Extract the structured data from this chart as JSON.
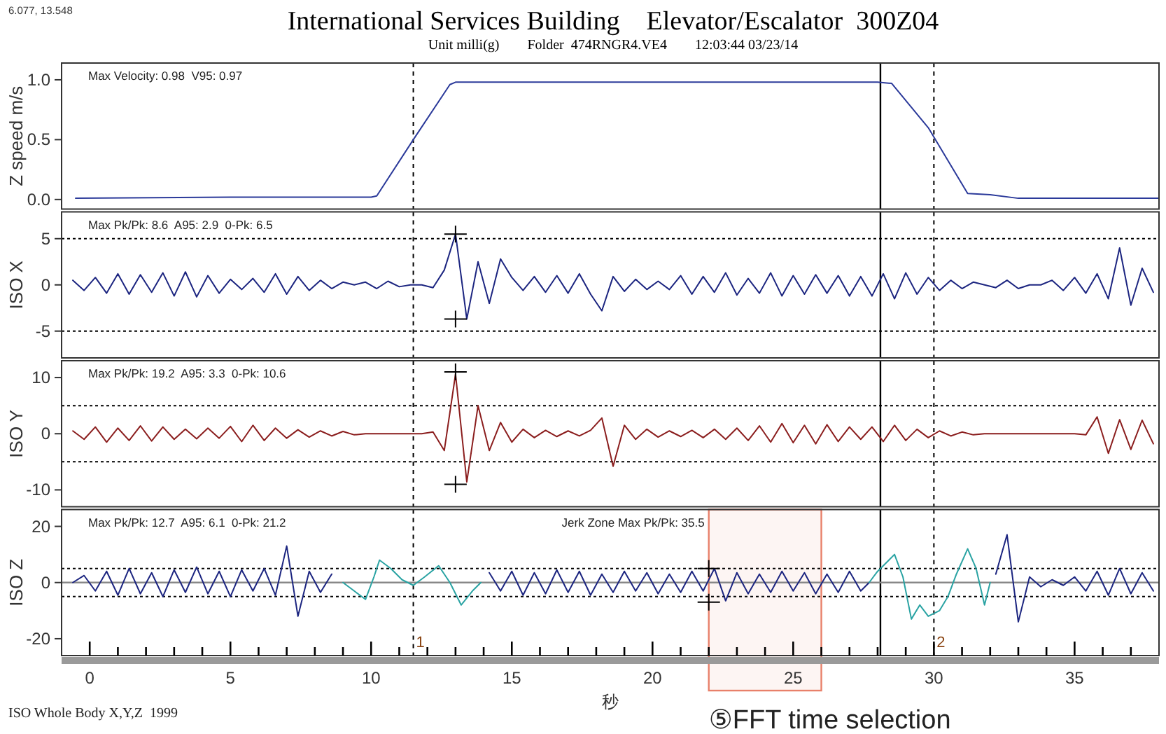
{
  "chart_data": [
    {
      "type": "line",
      "title": "International Services Building    Elevator/Escalator  300Z04",
      "subtitle": "Unit milli(g)        Folder  474RNGR4.VE4        12:03:44 03/23/14",
      "ylabel": "Z speed m/s",
      "xlim": [
        -1,
        38
      ],
      "ylim": [
        -0.08,
        1.14
      ],
      "yticks": [
        {
          "value": 0,
          "label": "0.0"
        },
        {
          "value": 0.5,
          "label": "0.5"
        },
        {
          "value": 1,
          "label": "1.0"
        }
      ],
      "tick_labels": "y",
      "annotations": [
        "6.077, 13.548",
        "Max Velocity: 0.98  V95: 0.97"
      ],
      "ref_lines": [
        {
          "axis": "x",
          "value": 11.5,
          "line_style": "dashed",
          "color": "#000000"
        },
        {
          "axis": "x",
          "value": 28.1,
          "line_style": "solid",
          "color": "#000000"
        },
        {
          "axis": "x",
          "value": 30,
          "line_style": "dashed",
          "color": "#000000"
        }
      ],
      "series": [
        {
          "color": "#2b3a9a",
          "x": [
            -0.5,
            5,
            10,
            10.2,
            11.5,
            12.8,
            13,
            20,
            28,
            28.5,
            29.8,
            31.2,
            32,
            33,
            38
          ],
          "values": [
            0.01,
            0.02,
            0.02,
            0.03,
            0.5,
            0.96,
            0.98,
            0.98,
            0.98,
            0.97,
            0.6,
            0.05,
            0.04,
            0.01,
            0.01
          ]
        }
      ]
    },
    {
      "type": "line",
      "ylabel": "ISO X",
      "xlim": [
        -1,
        38
      ],
      "ylim": [
        -7.9,
        7.9
      ],
      "yticks": [
        -5,
        0,
        5
      ],
      "tick_labels": "y",
      "annotations": [
        "Max Pk/Pk: 8.6  A95: 2.9  0-Pk: 6.5"
      ],
      "ref_lines": [
        {
          "axis": "x",
          "value": 11.5,
          "line_style": "dashed",
          "color": "#000000"
        },
        {
          "axis": "x",
          "value": 28.1,
          "line_style": "solid",
          "color": "#000000"
        },
        {
          "axis": "x",
          "value": 30,
          "line_style": "dashed",
          "color": "#000000"
        },
        {
          "axis": "y",
          "value": 5,
          "line_style": "dotted",
          "color": "#000000"
        },
        {
          "axis": "y",
          "value": -5,
          "line_style": "dotted",
          "color": "#000000"
        }
      ],
      "x": [
        -0.6,
        -0.2,
        0.2,
        0.6,
        1.0,
        1.4,
        1.8,
        2.2,
        2.6,
        3.0,
        3.4,
        3.8,
        4.2,
        4.6,
        5.0,
        5.4,
        5.8,
        6.2,
        6.6,
        7.0,
        7.4,
        7.8,
        8.2,
        8.6,
        9.0,
        9.4,
        9.8,
        10.2,
        10.6,
        11.0,
        11.4,
        11.8,
        12.2,
        12.6,
        13.0,
        13.4,
        13.8,
        14.2,
        14.6,
        15.0,
        15.4,
        15.8,
        16.2,
        16.6,
        17.0,
        17.4,
        17.8,
        18.2,
        18.6,
        19.0,
        19.4,
        19.8,
        20.2,
        20.6,
        21.0,
        21.4,
        21.8,
        22.2,
        22.6,
        23.0,
        23.4,
        23.8,
        24.2,
        24.6,
        25.0,
        25.4,
        25.8,
        26.2,
        26.6,
        27.0,
        27.4,
        27.8,
        28.2,
        28.6,
        29.0,
        29.4,
        29.8,
        30.2,
        30.6,
        31.0,
        31.4,
        31.8,
        32.2,
        32.6,
        33.0,
        33.4,
        33.8,
        34.2,
        34.6,
        35.0,
        35.4,
        35.8,
        36.2,
        36.6,
        37.0,
        37.4,
        37.8
      ],
      "series": [
        {
          "color": "#1c2580",
          "values": [
            0.5,
            -0.6,
            0.8,
            -0.9,
            1.2,
            -1.0,
            1.1,
            -0.8,
            1.3,
            -1.2,
            1.4,
            -1.3,
            1.0,
            -0.9,
            0.6,
            -0.5,
            0.7,
            -0.8,
            1.2,
            -1.0,
            0.9,
            -0.6,
            0.5,
            -0.4,
            0.3,
            0.0,
            0.3,
            -0.4,
            0.4,
            -0.2,
            0.0,
            0.0,
            -0.3,
            1.6,
            5.5,
            -3.7,
            2.5,
            -2.0,
            2.8,
            0.8,
            -0.6,
            0.9,
            -0.8,
            1.0,
            -0.9,
            1.2,
            -1.0,
            -2.8,
            0.9,
            -0.7,
            0.6,
            -0.5,
            0.4,
            -0.5,
            1.0,
            -1.0,
            0.9,
            -0.8,
            1.3,
            -1.1,
            0.7,
            -0.9,
            1.3,
            -1.2,
            1.0,
            -1.0,
            1.1,
            -0.9,
            1.0,
            -1.2,
            0.9,
            -1.2,
            1.2,
            -1.5,
            1.3,
            -1.0,
            0.8,
            -0.6,
            0.5,
            -0.4,
            0.3,
            0.0,
            -0.3,
            0.5,
            -0.4,
            0.0,
            0.0,
            0.5,
            -0.6,
            0.8,
            -0.9,
            1.2,
            -1.5,
            4.0,
            -2.2,
            1.8,
            -0.8
          ]
        },
        {
          "type": "scatter",
          "marker": "cross",
          "color": "#000000",
          "x": [
            13,
            13
          ],
          "values": [
            5.5,
            -3.7
          ]
        }
      ]
    },
    {
      "type": "line",
      "ylabel": "ISO Y",
      "xlim": [
        -1,
        38
      ],
      "ylim": [
        -13,
        13
      ],
      "yticks": [
        -10,
        0,
        10
      ],
      "tick_labels": "y",
      "annotations": [
        "Max Pk/Pk: 19.2  A95: 3.3  0-Pk: 10.6"
      ],
      "ref_lines": [
        {
          "axis": "x",
          "value": 11.5,
          "line_style": "dashed",
          "color": "#000000"
        },
        {
          "axis": "x",
          "value": 28.1,
          "line_style": "solid",
          "color": "#000000"
        },
        {
          "axis": "x",
          "value": 30,
          "line_style": "dashed",
          "color": "#000000"
        },
        {
          "axis": "y",
          "value": 5,
          "line_style": "dotted",
          "color": "#000000"
        },
        {
          "axis": "y",
          "value": -5,
          "line_style": "dotted",
          "color": "#000000"
        }
      ],
      "x": [
        -0.6,
        -0.2,
        0.2,
        0.6,
        1.0,
        1.4,
        1.8,
        2.2,
        2.6,
        3.0,
        3.4,
        3.8,
        4.2,
        4.6,
        5.0,
        5.4,
        5.8,
        6.2,
        6.6,
        7.0,
        7.4,
        7.8,
        8.2,
        8.6,
        9.0,
        9.4,
        9.8,
        10.2,
        10.6,
        11.0,
        11.4,
        11.8,
        12.2,
        12.6,
        13.0,
        13.4,
        13.8,
        14.2,
        14.6,
        15.0,
        15.4,
        15.8,
        16.2,
        16.6,
        17.0,
        17.4,
        17.8,
        18.2,
        18.6,
        19.0,
        19.4,
        19.8,
        20.2,
        20.6,
        21.0,
        21.4,
        21.8,
        22.2,
        22.6,
        23.0,
        23.4,
        23.8,
        24.2,
        24.6,
        25.0,
        25.4,
        25.8,
        26.2,
        26.6,
        27.0,
        27.4,
        27.8,
        28.2,
        28.6,
        29.0,
        29.4,
        29.8,
        30.2,
        30.6,
        31.0,
        31.4,
        31.8,
        32.2,
        32.6,
        33.0,
        33.4,
        33.8,
        34.2,
        34.6,
        35.0,
        35.4,
        35.8,
        36.2,
        36.6,
        37.0,
        37.4,
        37.8
      ],
      "series": [
        {
          "color": "#8b1e1e",
          "values": [
            0.5,
            -1.0,
            1.2,
            -1.5,
            1.0,
            -1.2,
            1.4,
            -1.3,
            1.2,
            -1.0,
            0.8,
            -0.9,
            1.0,
            -0.8,
            1.3,
            -1.4,
            1.5,
            -1.2,
            1.0,
            -0.8,
            0.7,
            -0.6,
            0.5,
            -0.4,
            0.4,
            -0.2,
            0.0,
            0.0,
            0.0,
            0.0,
            0.0,
            0.0,
            0.3,
            -3.0,
            10.6,
            -8.6,
            5.0,
            -3.0,
            2.0,
            -1.5,
            0.8,
            -0.7,
            0.6,
            -0.5,
            0.5,
            -0.4,
            0.6,
            2.8,
            -5.8,
            1.5,
            -1.0,
            0.8,
            -0.6,
            0.5,
            -0.5,
            0.6,
            -0.7,
            0.8,
            -1.0,
            1.0,
            -1.2,
            1.4,
            -1.5,
            1.8,
            -1.6,
            1.5,
            -1.8,
            1.6,
            -1.4,
            1.2,
            -1.0,
            1.2,
            -1.4,
            1.5,
            -1.2,
            0.8,
            -0.7,
            0.5,
            -0.4,
            0.3,
            -0.2,
            0.0,
            0.0,
            0.0,
            0.0,
            0.0,
            0.0,
            0.0,
            0.0,
            0.0,
            -0.2,
            3.0,
            -3.5,
            2.5,
            -2.8,
            2.4,
            -1.8
          ]
        },
        {
          "type": "scatter",
          "marker": "cross",
          "color": "#000000",
          "x": [
            13,
            13
          ],
          "values": [
            11,
            -9
          ]
        }
      ]
    },
    {
      "type": "line",
      "ylabel": "ISO Z",
      "xlabel": "秒",
      "xlim": [
        -1,
        38
      ],
      "ylim": [
        -26,
        26
      ],
      "yticks": [
        -20,
        0,
        20
      ],
      "xticks": [
        0,
        {
          "value": 1,
          "label": null
        },
        {
          "value": 2,
          "label": null
        },
        {
          "value": 3,
          "label": null
        },
        {
          "value": 4,
          "label": null
        },
        5,
        {
          "value": 6,
          "label": null
        },
        {
          "value": 7,
          "label": null
        },
        {
          "value": 8,
          "label": null
        },
        {
          "value": 9,
          "label": null
        },
        10,
        {
          "value": 11,
          "label": null
        },
        {
          "value": 12,
          "label": null
        },
        {
          "value": 13,
          "label": null
        },
        {
          "value": 14,
          "label": null
        },
        15,
        {
          "value": 16,
          "label": null
        },
        {
          "value": 17,
          "label": null
        },
        {
          "value": 18,
          "label": null
        },
        {
          "value": 19,
          "label": null
        },
        20,
        {
          "value": 21,
          "label": null
        },
        {
          "value": 22,
          "label": null
        },
        {
          "value": 23,
          "label": null
        },
        {
          "value": 24,
          "label": null
        },
        25,
        {
          "value": 26,
          "label": null
        },
        {
          "value": 27,
          "label": null
        },
        {
          "value": 28,
          "label": null
        },
        {
          "value": 29,
          "label": null
        },
        30,
        {
          "value": 31,
          "label": null
        },
        {
          "value": 32,
          "label": null
        },
        {
          "value": 33,
          "label": null
        },
        {
          "value": 34,
          "label": null
        },
        35,
        {
          "value": 36,
          "label": null
        },
        {
          "value": 37,
          "label": null
        }
      ],
      "annotations": [
        "Max Pk/Pk: 12.7  A95: 6.1  0-Pk: 21.2",
        "Jerk Zone Max Pk/Pk: 35.5",
        {
          "text": "1",
          "x": 11.5,
          "y": -21
        },
        {
          "text": "2",
          "x": 30,
          "y": -21
        },
        "ISO Whole Body X,Y,Z  1999"
      ],
      "bands": [
        {
          "axis": "x",
          "from": 22,
          "to": 26,
          "label": "⑤FFT time selection",
          "color": "#e8806a"
        }
      ],
      "ref_lines": [
        {
          "axis": "x",
          "value": 11.5,
          "line_style": "dashed",
          "color": "#000000"
        },
        {
          "axis": "x",
          "value": 28.1,
          "line_style": "solid",
          "color": "#000000"
        },
        {
          "axis": "x",
          "value": 30,
          "line_style": "dashed",
          "color": "#000000"
        },
        {
          "axis": "y",
          "value": 5,
          "line_style": "dotted",
          "color": "#000000"
        },
        {
          "axis": "y",
          "value": -5,
          "line_style": "dotted",
          "color": "#000000"
        },
        {
          "axis": "y",
          "value": 0,
          "line_style": "solid",
          "color": "#888888"
        }
      ],
      "series": [
        {
          "color": "#1c2580",
          "x": [
            -0.6,
            -0.2,
            0.2,
            0.6,
            1.0,
            1.4,
            1.8,
            2.2,
            2.6,
            3.0,
            3.4,
            3.8,
            4.2,
            4.6,
            5.0,
            5.4,
            5.8,
            6.2,
            6.6,
            7.0,
            7.4,
            7.8,
            8.2,
            8.6,
            9.0,
            14.2,
            14.6,
            15.0,
            15.4,
            15.8,
            16.2,
            16.6,
            17.0,
            17.4,
            17.8,
            18.2,
            18.6,
            19.0,
            19.4,
            19.8,
            20.2,
            20.6,
            21.0,
            21.4,
            21.8,
            22.2,
            22.6,
            23.0,
            23.4,
            23.8,
            24.2,
            24.6,
            25.0,
            25.4,
            25.8,
            26.2,
            26.6,
            27.0,
            27.4,
            27.7,
            32.0,
            32.2,
            32.6,
            33.0,
            33.4,
            33.8,
            34.2,
            34.6,
            35.0,
            35.4,
            35.8,
            36.2,
            36.6,
            37.0,
            37.4,
            37.8
          ],
          "values": [
            0.0,
            2.5,
            -3.0,
            4.0,
            -4.5,
            5.0,
            -4.0,
            3.5,
            -5.0,
            4.5,
            -3.5,
            5.5,
            -4.0,
            4.0,
            -5.0,
            4.5,
            -3.0,
            5.0,
            -4.5,
            13.0,
            -12.0,
            4.0,
            -3.5,
            3.0,
            null,
            3.5,
            -3.0,
            4.0,
            -4.5,
            3.5,
            -4.0,
            4.5,
            -3.5,
            4.0,
            -4.5,
            3.0,
            -3.5,
            4.0,
            -3.0,
            3.5,
            -4.0,
            3.0,
            -3.5,
            4.0,
            -3.0,
            5.0,
            -6.5,
            3.5,
            -4.0,
            3.0,
            -3.5,
            4.0,
            -3.0,
            3.5,
            -4.0,
            3.0,
            -3.5,
            4.0,
            -3.0,
            0.0,
            null,
            3.0,
            17.0,
            -14.0,
            2.0,
            -1.5,
            1.0,
            -1.0,
            2.0,
            -3.0,
            4.0,
            -4.5,
            5.0,
            -4.0,
            3.5,
            -3.0
          ]
        },
        {
          "color": "#2aa3a3",
          "x": [
            9.0,
            9.4,
            9.8,
            10.1,
            10.3,
            10.7,
            11.1,
            11.5,
            11.9,
            12.4,
            12.8,
            13.2,
            13.6,
            13.9,
            14.2,
            27.7,
            28.0,
            28.3,
            28.6,
            28.9,
            29.2,
            29.5,
            29.8,
            30.2,
            30.5,
            30.8,
            31.2,
            31.5,
            31.8,
            32.0
          ],
          "values": [
            0,
            -3,
            -6,
            2,
            8,
            5,
            1,
            -1,
            2,
            6,
            0,
            -8,
            -3,
            0,
            null,
            0,
            4,
            7,
            10,
            2,
            -13,
            -8,
            -12,
            -10,
            -5,
            3,
            12,
            5,
            -8,
            0
          ]
        },
        {
          "type": "scatter",
          "marker": "cross",
          "color": "#000000",
          "x": [
            22,
            22
          ],
          "values": [
            5,
            -7
          ]
        }
      ]
    }
  ]
}
